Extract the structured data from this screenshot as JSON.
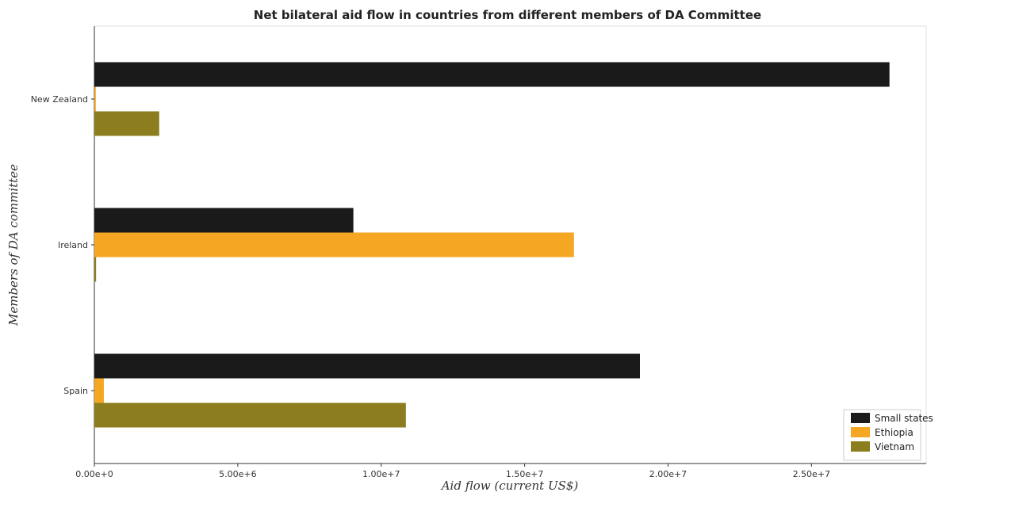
{
  "chart_data": {
    "type": "bar",
    "orientation": "horizontal",
    "title": "Net bilateral aid flow in countries from different members of DA Committee",
    "xlabel": "Aid flow (current US$)",
    "ylabel": "Members of DA committee",
    "categories": [
      "New Zealand",
      "Ireland",
      "Spain"
    ],
    "series": [
      {
        "name": "Small states",
        "color": "#1a1a1a",
        "values": [
          27720000,
          9030000,
          19020000
        ]
      },
      {
        "name": "Ethiopia",
        "color": "#f5a623",
        "values": [
          50000,
          16720000,
          330000
        ]
      },
      {
        "name": "Vietnam",
        "color": "#8c7d1e",
        "values": [
          2260000,
          60000,
          10860000
        ]
      }
    ],
    "x_ticks": [
      "0.00e+0",
      "5.00e+6",
      "1.00e+7",
      "1.50e+7",
      "2.00e+7",
      "2.50e+7"
    ],
    "xlim": [
      0,
      29000000
    ],
    "grid": false,
    "legend_position": "bottom-right"
  }
}
